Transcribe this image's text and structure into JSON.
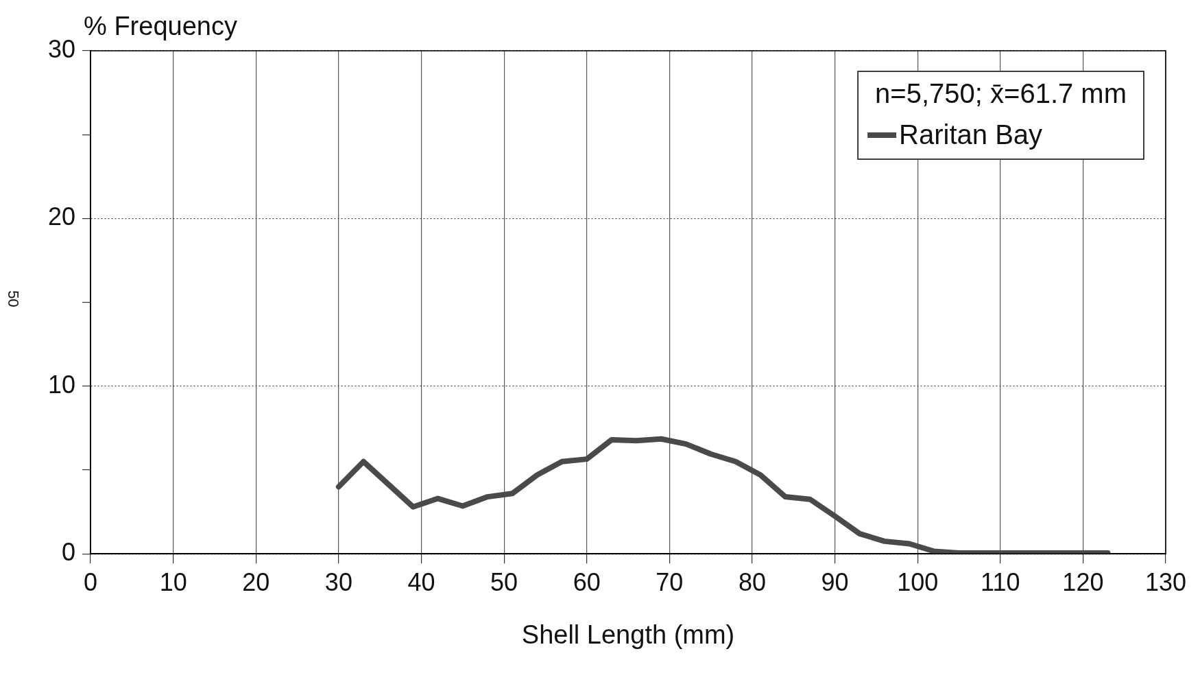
{
  "chart_data": {
    "type": "line",
    "xlabel": "Shell Length (mm)",
    "ylabel": "% Frequency",
    "legend_title": "n=5,750; x̄=61.7 mm",
    "legend": "top right",
    "grid": true,
    "marker": "none",
    "line_style": "solid",
    "annotations": [
      "50"
    ],
    "xlim": [
      0,
      130
    ],
    "xticks": [
      0,
      10,
      20,
      30,
      40,
      50,
      60,
      70,
      80,
      90,
      100,
      110,
      120,
      130
    ],
    "ylim": [
      0,
      30
    ],
    "yticks": [
      0,
      {
        "value": 5,
        "label": null
      },
      10,
      {
        "value": 15,
        "label": null
      },
      20,
      {
        "value": 25,
        "label": null
      },
      30
    ],
    "x": [
      30,
      33,
      36,
      39,
      42,
      45,
      48,
      51,
      54,
      57,
      60,
      63,
      66,
      69,
      72,
      75,
      78,
      81,
      84,
      87,
      90,
      93,
      96,
      99,
      102,
      105,
      108,
      111,
      114,
      117,
      120,
      123
    ],
    "series": [
      {
        "name": "Raritan Bay",
        "color": "#4a4a4a",
        "values": [
          4.0,
          5.5,
          4.15,
          2.8,
          3.3,
          2.85,
          3.4,
          3.6,
          4.7,
          5.5,
          5.65,
          6.8,
          6.75,
          6.85,
          6.55,
          5.95,
          5.5,
          4.7,
          3.4,
          3.25,
          2.25,
          1.2,
          0.75,
          0.6,
          0.15,
          0.05,
          0.05,
          0.05,
          0.05,
          0.05,
          0.05,
          0.05
        ]
      }
    ]
  }
}
